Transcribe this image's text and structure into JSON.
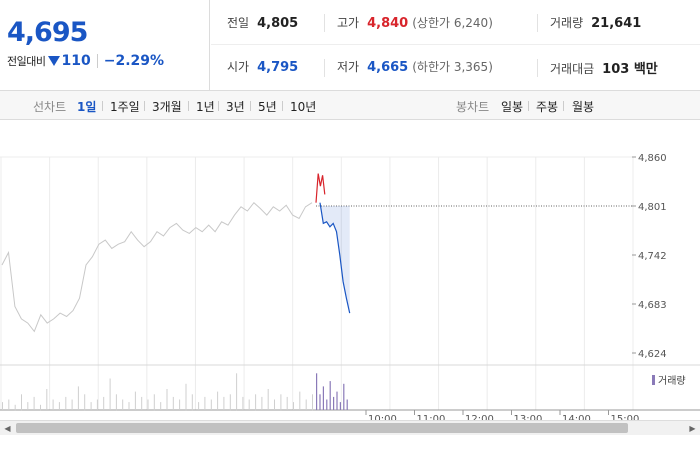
{
  "quote": {
    "price": "4,695",
    "change_label": "전일대비",
    "change_amount": "110",
    "change_percent": "−2.29%"
  },
  "stats": {
    "prev_close_label": "전일",
    "prev_close": "4,805",
    "high_label": "고가",
    "high": "4,840",
    "upper_limit": "(상한가 6,240)",
    "volume_label": "거래량",
    "volume": "21,641",
    "open_label": "시가",
    "open": "4,795",
    "low_label": "저가",
    "low": "4,665",
    "lower_limit": "(하한가 3,365)",
    "amount_label": "거래대금",
    "amount": "103 백만"
  },
  "toolbar": {
    "line_label": "선차트",
    "periods": [
      "1일",
      "1주일",
      "3개월",
      "1년",
      "3년",
      "5년",
      "10년"
    ],
    "active_period": "1일",
    "candle_label": "봉차트",
    "candles": [
      "일봉",
      "주봉",
      "월봉"
    ]
  },
  "colors": {
    "up": "#d8242b",
    "down": "#1a56c4",
    "history": "#c8c8c8",
    "volume_today": "#8a7ab8",
    "volume_history": "#cfcfcf",
    "grid": "#ececec"
  },
  "chart_data": {
    "type": "line",
    "yticks": [
      "4,860",
      "4,801",
      "4,742",
      "4,683",
      "4,624"
    ],
    "ylim": [
      4624,
      4860
    ],
    "reference_price": 4801,
    "xticks": [
      "10:00",
      "11:00",
      "12:00",
      "13:00",
      "14:00",
      "15:00"
    ],
    "history_series": [
      4730,
      4745,
      4680,
      4665,
      4660,
      4650,
      4670,
      4660,
      4665,
      4672,
      4668,
      4675,
      4690,
      4730,
      4740,
      4755,
      4760,
      4750,
      4755,
      4758,
      4770,
      4760,
      4752,
      4758,
      4770,
      4765,
      4775,
      4780,
      4772,
      4768,
      4775,
      4770,
      4778,
      4770,
      4782,
      4778,
      4790,
      4800,
      4795,
      4805,
      4798,
      4790,
      4800,
      4795,
      4802,
      4790,
      4786,
      4800,
      4805
    ],
    "today_up_series": [
      4805,
      4840,
      4825,
      4838,
      4815
    ],
    "today_down_series": [
      4805,
      4780,
      4782,
      4776,
      4780,
      4770,
      4742,
      4710,
      4690,
      4672
    ],
    "history_volume": [
      3,
      4,
      2,
      6,
      3,
      5,
      2,
      8,
      4,
      3,
      5,
      4,
      9,
      6,
      3,
      4,
      5,
      12,
      6,
      4,
      3,
      7,
      5,
      4,
      6,
      3,
      8,
      5,
      4,
      10,
      6,
      3,
      5,
      4,
      7,
      5,
      6,
      14,
      5,
      4,
      6,
      5,
      8,
      4,
      6,
      5,
      3,
      7,
      4,
      6
    ],
    "today_volume": [
      14,
      6,
      9,
      4,
      11,
      5,
      7,
      3,
      10,
      4
    ]
  },
  "volume_legend": "거래량"
}
